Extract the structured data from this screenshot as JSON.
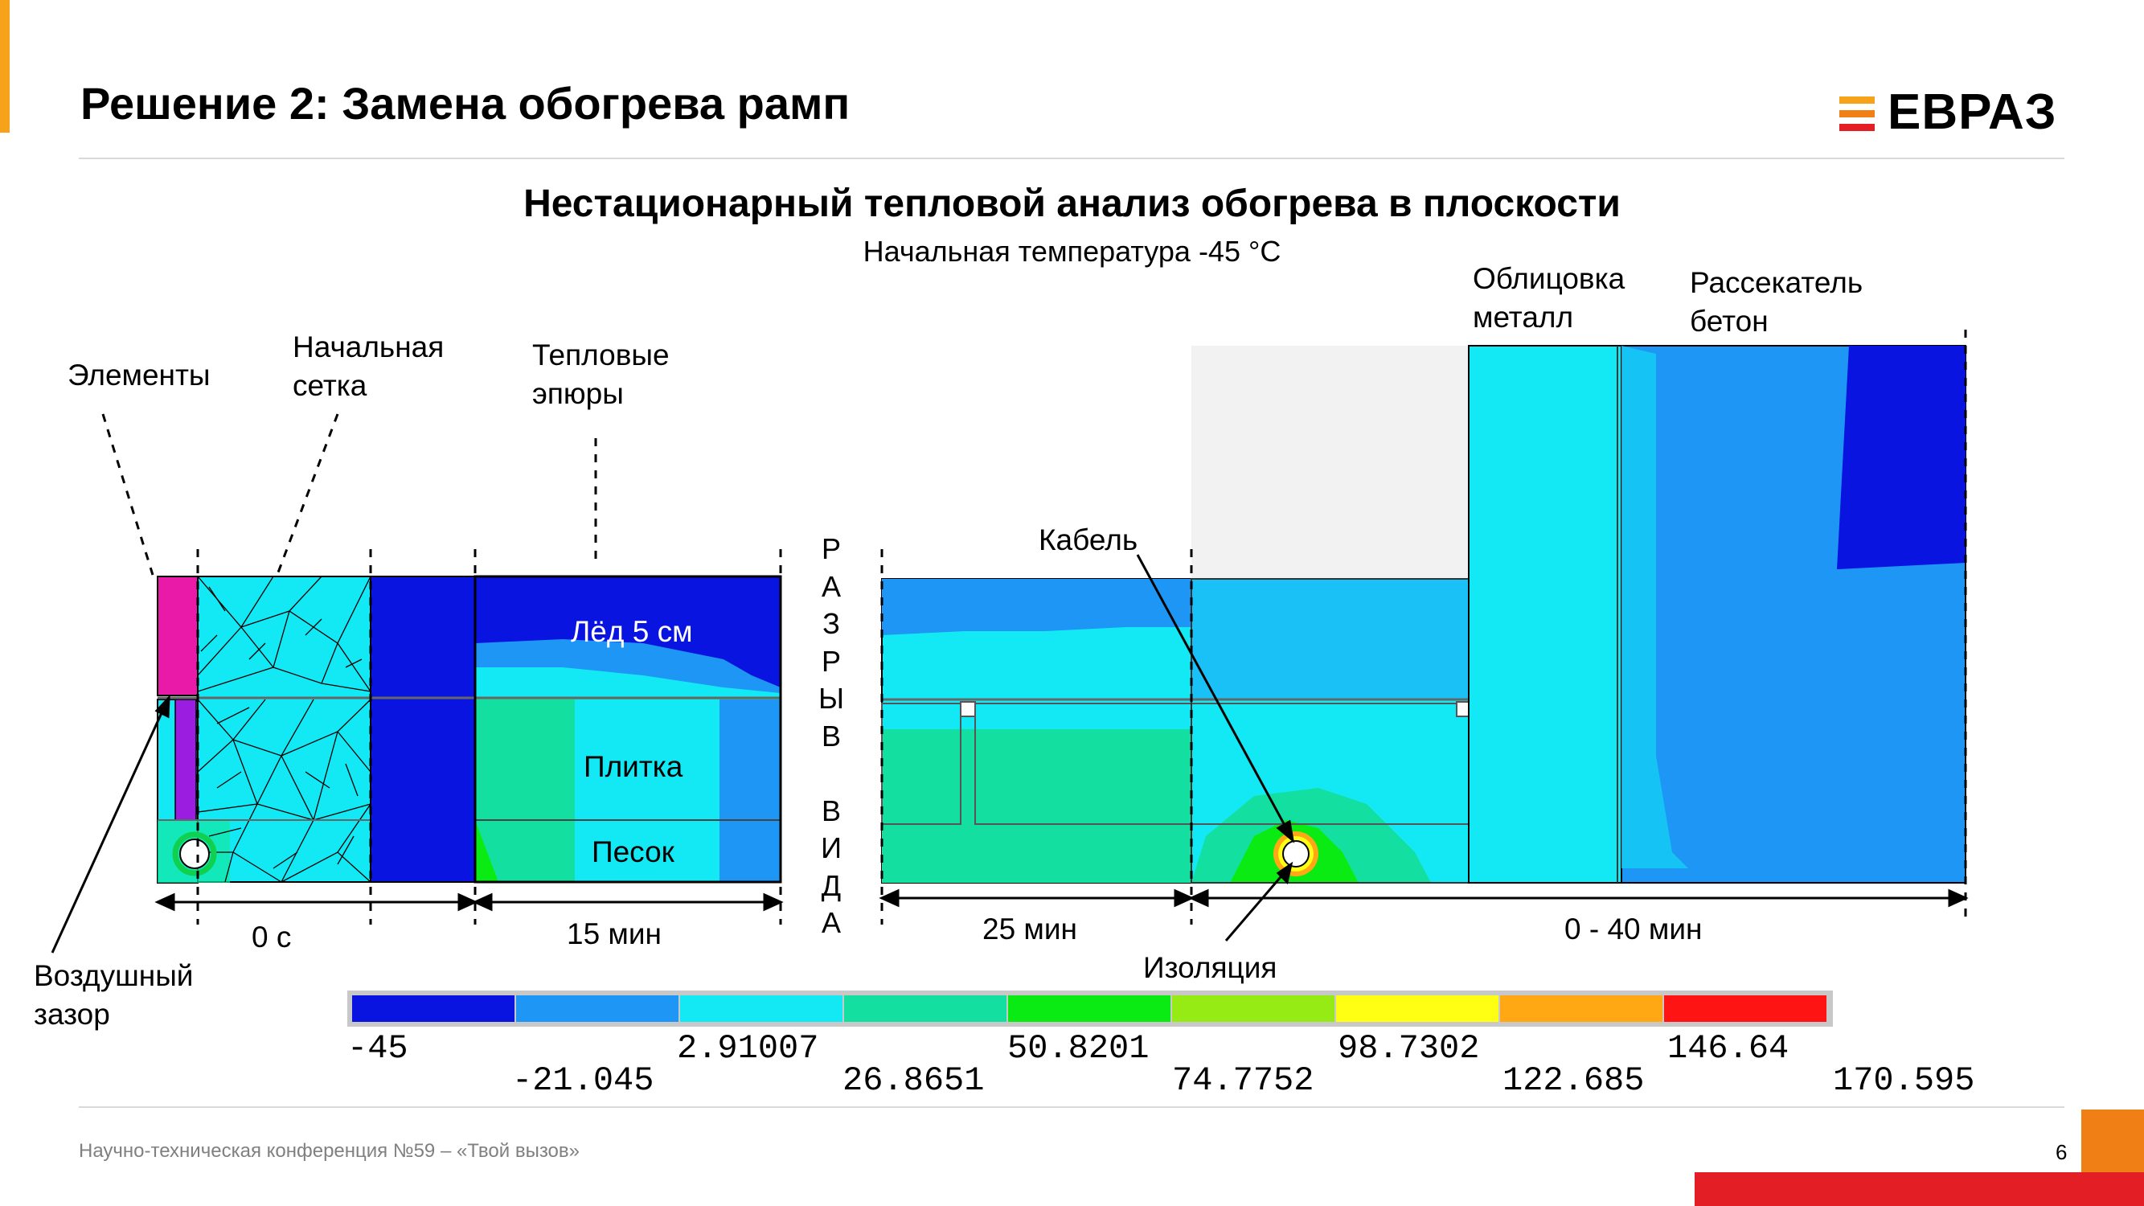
{
  "slide": {
    "title": "Решение 2: Замена обогрева рамп",
    "heading": "Нестационарный тепловой анализ обогрева в плоскости",
    "subheading": "Начальная температура -45 °С",
    "footer": "Научно-техническая конференция №59 – «Твой вызов»",
    "page_number": "6",
    "logo_text": "ЕВРАЗ"
  },
  "colors": {
    "accent_orange": "#f7a21b",
    "brand_red": "#e31e24",
    "brand_orange": "#f07f16"
  },
  "labels": {
    "elements": "Элементы",
    "initial_mesh": "Начальная\nсетка",
    "thermal_plots": "Тепловые\nэпюры",
    "air_gap": "Воздушный\nзазор",
    "ice": "Лёд 5 см",
    "tile": "Плитка",
    "sand": "Песок",
    "cable": "Кабель",
    "insulation": "Изоляция",
    "cladding": "Облицовка\nметалл",
    "divider": "Рассекатель\nбетон",
    "view_break": "РАЗРЫВ ВИДА"
  },
  "views": [
    {
      "time": "0 с"
    },
    {
      "time": "15 мин"
    },
    {
      "time": "25 мин"
    },
    {
      "time": "0 - 40 мин"
    }
  ],
  "legend": {
    "type": "contour-color-scale",
    "colors": [
      "#0a14e0",
      "#1e96f5",
      "#13e8f5",
      "#13e0a0",
      "#0aeb14",
      "#96eb14",
      "#ffff14",
      "#ffa814",
      "#ff1414"
    ],
    "values_top": [
      "-45",
      "2.91007",
      "50.8201",
      "98.7302",
      "146.64"
    ],
    "values_bottom": [
      "-21.045",
      "26.8651",
      "74.7752",
      "122.685",
      "170.595"
    ]
  }
}
